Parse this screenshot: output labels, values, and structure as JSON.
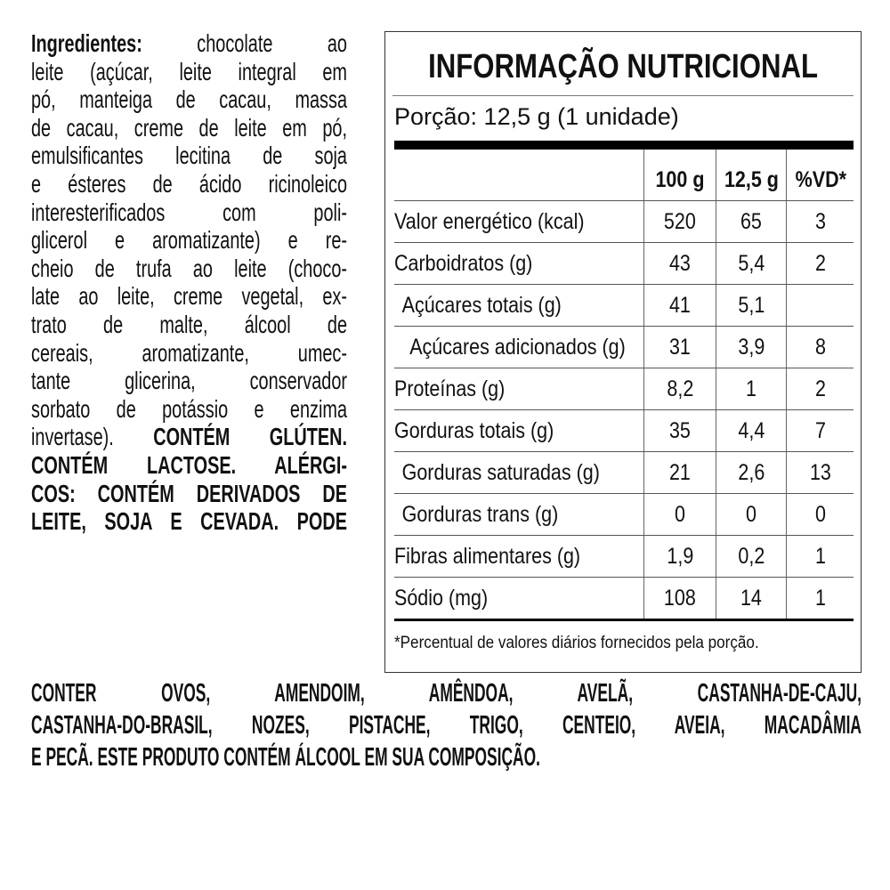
{
  "ingredients": {
    "lines": [
      [
        {
          "b": true,
          "t": "Ingredientes:"
        },
        {
          "t": " chocolate ao"
        }
      ],
      [
        {
          "t": "leite (açúcar, leite integral em"
        }
      ],
      [
        {
          "t": "pó, manteiga de cacau, massa"
        }
      ],
      [
        {
          "t": "de cacau, creme de leite em pó,"
        }
      ],
      [
        {
          "t": "emulsificantes lecitina de soja"
        }
      ],
      [
        {
          "t": "e ésteres de ácido ricinoleico"
        }
      ],
      [
        {
          "t": "interesterificados com poli-"
        }
      ],
      [
        {
          "t": "glicerol e aromatizante) e re-"
        }
      ],
      [
        {
          "t": "cheio de trufa ao leite (choco-"
        }
      ],
      [
        {
          "t": "late ao leite, creme vegetal, ex-"
        }
      ],
      [
        {
          "t": "trato de malte, álcool de"
        }
      ],
      [
        {
          "t": "cereais, aromatizante, umec-"
        }
      ],
      [
        {
          "t": "tante glicerina, conservador"
        }
      ],
      [
        {
          "t": "sorbato de potássio e enzima"
        }
      ],
      [
        {
          "t": "invertase). "
        },
        {
          "b": true,
          "t": "CONTÉM GLÚTEN."
        }
      ],
      [
        {
          "b": true,
          "t": "CONTÉM LACTOSE. ALÉRGI-"
        }
      ],
      [
        {
          "b": true,
          "t": "COS: CONTÉM DERIVADOS DE"
        }
      ],
      [
        {
          "b": true,
          "t": "LEITE, SOJA E CEVADA. PODE"
        }
      ]
    ],
    "full_lines": [
      "CONTER OVOS, AMENDOIM, AMÊNDOA, AVELÃ, CASTANHA-DE-CAJU,",
      "CASTANHA-DO-BRASIL, NOZES, PISTACHE, TRIGO, CENTEIO, AVEIA, MACADÂMIA",
      "E PECÃ. ESTE PRODUTO CONTÉM ÁLCOOL EM SUA COMPOSIÇÃO."
    ]
  },
  "nutrition": {
    "title": "INFORMAÇÃO NUTRICIONAL",
    "portion": "Porção: 12,5 g (1 unidade)",
    "headers": [
      "",
      "100 g",
      "12,5 g",
      "%VD*"
    ],
    "rows": [
      {
        "label": "Valor energético (kcal)",
        "indent": 0,
        "v100": "520",
        "vportion": "65",
        "vd": "3"
      },
      {
        "label": "Carboidratos (g)",
        "indent": 0,
        "v100": "43",
        "vportion": "5,4",
        "vd": "2"
      },
      {
        "label": "Açúcares totais (g)",
        "indent": 1,
        "v100": "41",
        "vportion": "5,1",
        "vd": ""
      },
      {
        "label": "Açúcares adicionados (g)",
        "indent": 2,
        "v100": "31",
        "vportion": "3,9",
        "vd": "8"
      },
      {
        "label": "Proteínas (g)",
        "indent": 0,
        "v100": "8,2",
        "vportion": "1",
        "vd": "2"
      },
      {
        "label": "Gorduras totais (g)",
        "indent": 0,
        "v100": "35",
        "vportion": "4,4",
        "vd": "7"
      },
      {
        "label": "Gorduras saturadas (g)",
        "indent": 1,
        "v100": "21",
        "vportion": "2,6",
        "vd": "13"
      },
      {
        "label": "Gorduras trans (g)",
        "indent": 1,
        "v100": "0",
        "vportion": "0",
        "vd": "0"
      },
      {
        "label": "Fibras alimentares (g)",
        "indent": 0,
        "v100": "1,9",
        "vportion": "0,2",
        "vd": "1"
      },
      {
        "label": "Sódio (mg)",
        "indent": 0,
        "v100": "108",
        "vportion": "14",
        "vd": "1"
      }
    ],
    "footnote": "*Percentual de valores diários fornecidos pela porção."
  }
}
